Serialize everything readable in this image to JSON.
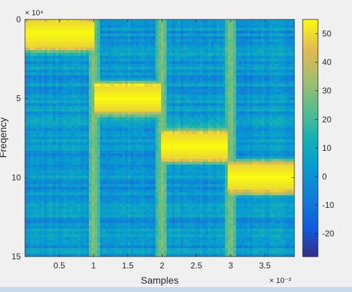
{
  "chart_data": {
    "type": "heatmap",
    "title": "",
    "xlabel": "Samples",
    "ylabel": "Freqency",
    "x_exponent_label": "× 10⁻³",
    "y_exponent_label": "× 10⁴",
    "xlim": [
      0.0,
      3.93
    ],
    "ylim": [
      0,
      15
    ],
    "y_direction": "reverse",
    "x_ticks": [
      0.5,
      1,
      1.5,
      2,
      2.5,
      3,
      3.5
    ],
    "x_tick_labels": [
      "0.5",
      "1",
      "1.5",
      "2",
      "2.5",
      "3",
      "3.5"
    ],
    "y_ticks": [
      0,
      5,
      10,
      15
    ],
    "y_tick_labels": [
      "0",
      "5",
      "10",
      "15"
    ],
    "colormap": "parula",
    "colorbar": {
      "range": [
        -28,
        55
      ],
      "ticks": [
        50,
        40,
        30,
        20,
        10,
        0,
        -10,
        -20
      ],
      "tick_labels": [
        "50",
        "40",
        "30",
        "20",
        "10",
        "0",
        "-10",
        "-20"
      ]
    },
    "segments": [
      {
        "x_start": 0.0,
        "x_end": 0.98,
        "freq_center": 0.9,
        "freq_width": 1.6,
        "peak": 55
      },
      {
        "x_start": 1.0,
        "x_end": 1.95,
        "freq_center": 5.0,
        "freq_width": 1.6,
        "peak": 55
      },
      {
        "x_start": 2.0,
        "x_end": 2.95,
        "freq_center": 8.0,
        "freq_width": 1.6,
        "peak": 55
      },
      {
        "x_start": 3.0,
        "x_end": 3.93,
        "freq_center": 10.0,
        "freq_width": 1.6,
        "peak": 55
      }
    ],
    "transitions": [
      1.0,
      2.0,
      3.0
    ],
    "background_level": 2,
    "grid": false
  }
}
